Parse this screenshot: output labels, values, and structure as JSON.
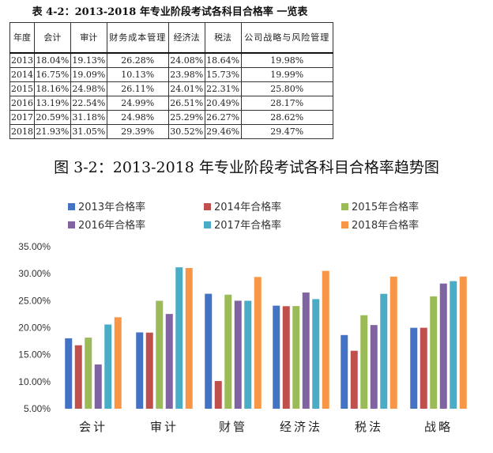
{
  "table": {
    "title": "表 4-2：2013-2018 年专业阶段考试各科目合格率 一览表",
    "headers": [
      "年度",
      "会计",
      "审计",
      "财务成本管理",
      "经济法",
      "税法",
      "公司战略与风险管理"
    ],
    "rows": [
      [
        "2013",
        "18.04%",
        "19.13%",
        "26.28%",
        "24.08%",
        "18.64%",
        "19.98%"
      ],
      [
        "2014",
        "16.75%",
        "19.09%",
        "10.13%",
        "23.98%",
        "15.73%",
        "19.99%"
      ],
      [
        "2015",
        "18.16%",
        "24.98%",
        "26.11%",
        "24.01%",
        "22.31%",
        "25.80%"
      ],
      [
        "2016",
        "13.19%",
        "22.54%",
        "24.99%",
        "26.51%",
        "20.49%",
        "28.17%"
      ],
      [
        "2017",
        "20.59%",
        "31.18%",
        "24.98%",
        "25.29%",
        "26.27%",
        "28.62%"
      ],
      [
        "2018",
        "21.93%",
        "31.05%",
        "29.39%",
        "30.52%",
        "29.46%",
        "29.47%"
      ]
    ]
  },
  "chart_data": {
    "type": "bar",
    "title": "图 3-2：2013-2018 年专业阶段考试各科目合格率趋势图",
    "categories": [
      "会计",
      "审计",
      "财管",
      "经济法",
      "税法",
      "战略"
    ],
    "series": [
      {
        "name": "2013年合格率",
        "color": "#4472C4",
        "values": [
          18.04,
          19.13,
          26.28,
          24.08,
          18.64,
          19.98
        ]
      },
      {
        "name": "2014年合格率",
        "color": "#C0504D",
        "values": [
          16.75,
          19.09,
          10.13,
          23.98,
          15.73,
          19.99
        ]
      },
      {
        "name": "2015年合格率",
        "color": "#9BBB59",
        "values": [
          18.16,
          24.98,
          26.11,
          24.01,
          22.31,
          25.8
        ]
      },
      {
        "name": "2016年合格率",
        "color": "#8064A2",
        "values": [
          13.19,
          22.54,
          24.99,
          26.51,
          20.49,
          28.17
        ]
      },
      {
        "name": "2017年合格率",
        "color": "#4BACC6",
        "values": [
          20.59,
          31.18,
          24.98,
          25.29,
          26.27,
          28.62
        ]
      },
      {
        "name": "2018年合格率",
        "color": "#F79646",
        "values": [
          21.93,
          31.05,
          29.39,
          30.52,
          29.46,
          29.47
        ]
      }
    ],
    "yticks": [
      "5.00%",
      "10.00%",
      "15.00%",
      "20.00%",
      "25.00%",
      "30.00%",
      "35.00%"
    ],
    "ylim": [
      5,
      35
    ],
    "legend": "top",
    "grid": false
  }
}
